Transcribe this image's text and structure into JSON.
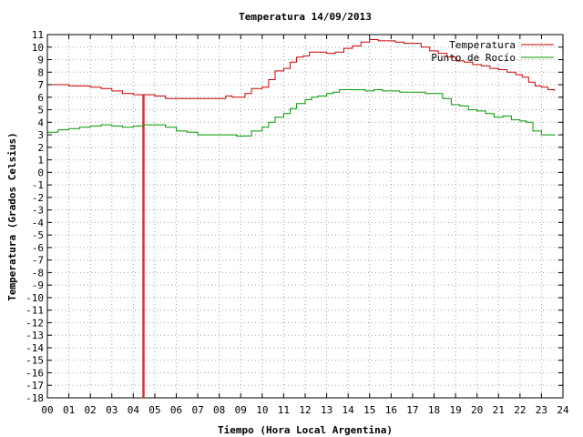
{
  "chart_data": {
    "type": "line",
    "title": "Temperatura 14/09/2013",
    "xlabel": "Tiempo (Hora Local Argentina)",
    "ylabel": "Temperatura (Grados Celsius)",
    "xlim": [
      0,
      24
    ],
    "ylim": [
      -18,
      11
    ],
    "x_ticks": [
      "00",
      "01",
      "02",
      "03",
      "04",
      "05",
      "06",
      "07",
      "08",
      "09",
      "10",
      "11",
      "12",
      "13",
      "14",
      "15",
      "16",
      "17",
      "18",
      "19",
      "20",
      "21",
      "22",
      "23",
      "24"
    ],
    "grid": true,
    "legend_position": "top-right",
    "series": [
      {
        "name": "Temperatura",
        "color": "#cc0000",
        "x": [
          0.0,
          0.5,
          1.0,
          2.0,
          2.5,
          3.0,
          3.5,
          4.0,
          4.4,
          4.45,
          4.5,
          5.0,
          5.5,
          6.0,
          7.0,
          7.5,
          8.0,
          8.3,
          8.6,
          8.9,
          9.2,
          9.5,
          10.0,
          10.3,
          10.6,
          11.0,
          11.3,
          11.6,
          11.9,
          12.2,
          12.6,
          13.0,
          13.4,
          13.8,
          14.2,
          14.6,
          15.0,
          15.4,
          15.8,
          16.2,
          16.6,
          17.0,
          17.4,
          17.8,
          18.2,
          18.6,
          19.0,
          19.4,
          19.8,
          20.2,
          20.6,
          21.0,
          21.4,
          21.8,
          22.1,
          22.4,
          22.7,
          23.0,
          23.3,
          23.6
        ],
        "values": [
          7.0,
          7.0,
          6.9,
          6.8,
          6.7,
          6.5,
          6.3,
          6.2,
          6.2,
          -17.9,
          6.2,
          6.1,
          5.9,
          5.9,
          5.9,
          5.9,
          5.9,
          6.1,
          6.0,
          6.0,
          6.3,
          6.7,
          6.8,
          7.4,
          8.1,
          8.3,
          8.8,
          9.2,
          9.3,
          9.6,
          9.6,
          9.5,
          9.6,
          9.9,
          10.1,
          10.4,
          10.6,
          10.5,
          10.5,
          10.4,
          10.3,
          10.3,
          10.0,
          9.7,
          9.5,
          9.2,
          8.9,
          8.8,
          8.6,
          8.5,
          8.3,
          8.2,
          8.0,
          7.8,
          7.6,
          7.2,
          6.9,
          6.8,
          6.6,
          6.5
        ]
      },
      {
        "name": "Punto de Rocío",
        "color": "#009900",
        "x": [
          0.0,
          0.5,
          1.0,
          1.5,
          2.0,
          2.5,
          3.0,
          3.5,
          4.0,
          4.5,
          5.0,
          5.5,
          6.0,
          6.5,
          7.0,
          7.5,
          8.0,
          8.4,
          8.8,
          9.1,
          9.5,
          10.0,
          10.3,
          10.6,
          11.0,
          11.3,
          11.6,
          12.0,
          12.3,
          12.6,
          13.0,
          13.3,
          13.6,
          14.0,
          14.4,
          14.8,
          15.2,
          15.6,
          16.0,
          16.4,
          16.8,
          17.2,
          17.6,
          18.0,
          18.4,
          18.8,
          19.2,
          19.6,
          20.0,
          20.4,
          20.8,
          21.2,
          21.6,
          22.0,
          22.3,
          22.6,
          23.0,
          23.3,
          23.6
        ],
        "values": [
          3.2,
          3.4,
          3.5,
          3.6,
          3.7,
          3.8,
          3.7,
          3.6,
          3.7,
          3.8,
          3.8,
          3.6,
          3.3,
          3.2,
          3.0,
          3.0,
          3.0,
          3.0,
          2.9,
          2.9,
          3.3,
          3.6,
          4.0,
          4.4,
          4.7,
          5.1,
          5.5,
          5.8,
          6.0,
          6.1,
          6.3,
          6.4,
          6.6,
          6.6,
          6.6,
          6.5,
          6.6,
          6.5,
          6.5,
          6.4,
          6.4,
          6.4,
          6.3,
          6.3,
          5.9,
          5.4,
          5.3,
          5.0,
          4.9,
          4.7,
          4.4,
          4.5,
          4.2,
          4.1,
          4.0,
          3.3,
          3.0,
          3.0,
          2.9
        ]
      }
    ]
  }
}
